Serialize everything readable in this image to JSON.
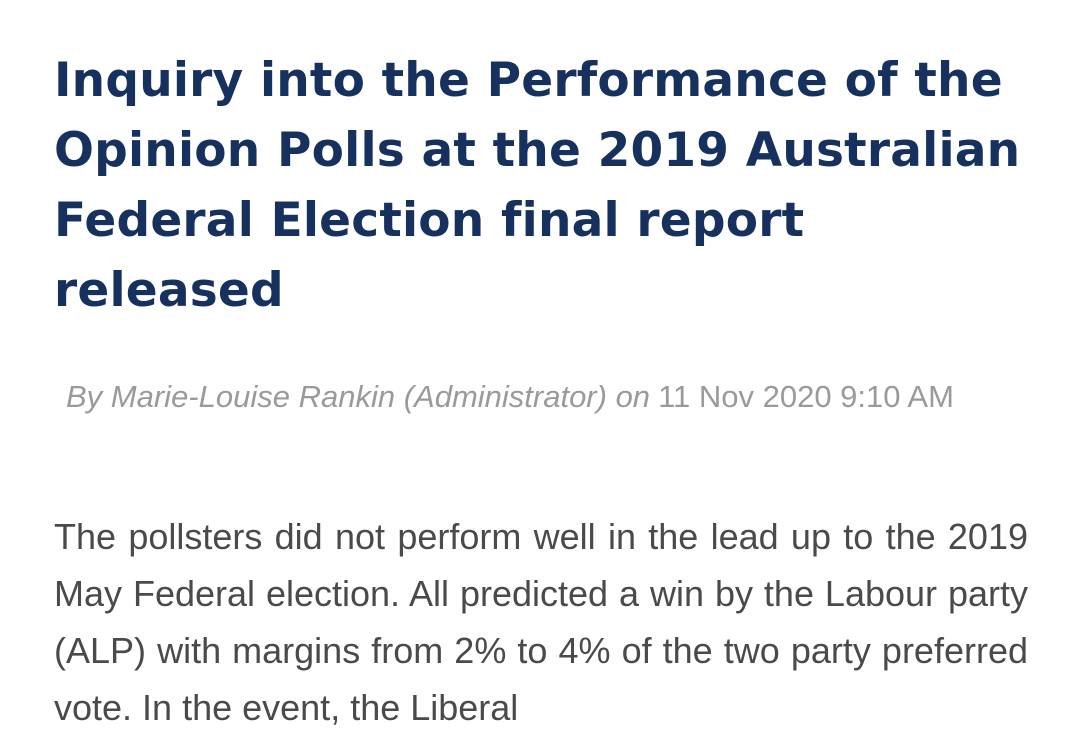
{
  "article": {
    "title": "Inquiry into the Performance of the Opinion Polls at the 2019 Australian Federal Election final report released",
    "byline": {
      "author_prefix": "By Marie-Louise Rankin (Administrator) on",
      "date": "11 Nov 2020 9:10 AM"
    },
    "body": "The pollsters did not perform well in the lead up to the 2019 May Federal election. All predicted a win by the Labour party (ALP) with margins from 2% to 4% of the two party preferred vote. In the event, the Liberal"
  }
}
